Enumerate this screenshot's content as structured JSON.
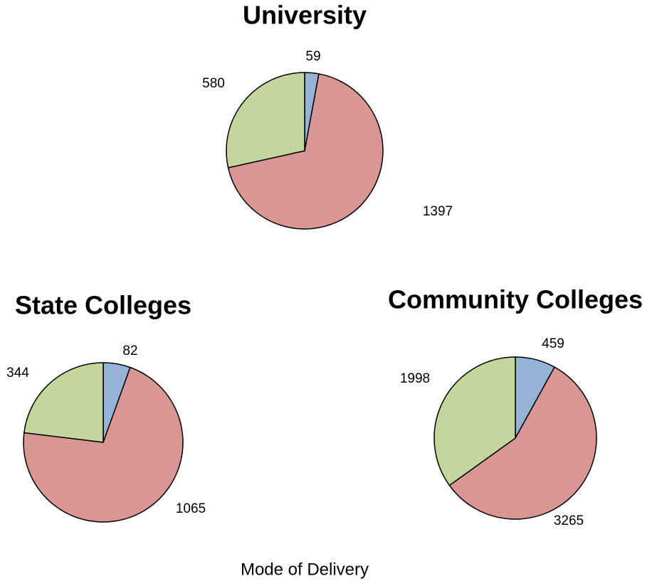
{
  "chart_data": [
    {
      "type": "pie",
      "title": "University",
      "values": [
        59,
        1397,
        580
      ],
      "colors": [
        "#95b3d7",
        "#d99694",
        "#c3d69b"
      ]
    },
    {
      "type": "pie",
      "title": "State Colleges",
      "values": [
        82,
        1065,
        344
      ],
      "colors": [
        "#95b3d7",
        "#d99694",
        "#c3d69b"
      ]
    },
    {
      "type": "pie",
      "title": "Community Colleges",
      "values": [
        459,
        3265,
        1998
      ],
      "colors": [
        "#95b3d7",
        "#d99694",
        "#c3d69b"
      ]
    }
  ],
  "caption": "Mode of Delivery"
}
